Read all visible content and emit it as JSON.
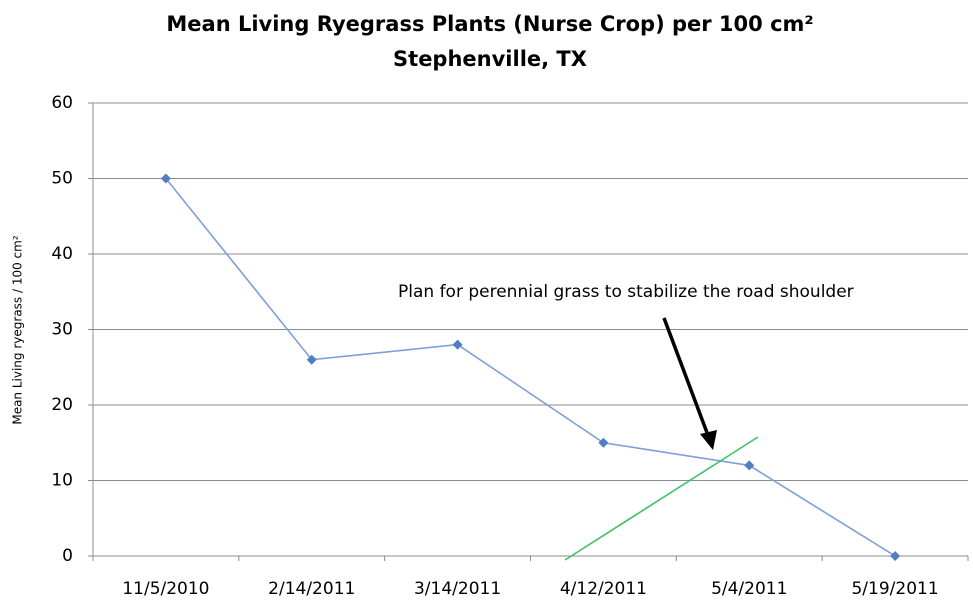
{
  "chart_data": {
    "type": "line",
    "title": "Mean Living Ryegrass Plants (Nurse Crop) per 100 cm²",
    "subtitle": "Stephenville, TX",
    "y_label": "Mean Living ryegrass / 100 cm²",
    "annotation": "Plan for perennial grass to stabilize the road shoulder",
    "categories": [
      "11/5/2010",
      "2/14/2011",
      "3/14/2011",
      "4/12/2011",
      "5/4/2011",
      "5/19/2011"
    ],
    "series": [
      {
        "color": "#7da0d6",
        "values": [
          50,
          26,
          28,
          15,
          12,
          0
        ]
      }
    ],
    "ylim": [
      0,
      60
    ],
    "yticks": [
      0,
      10,
      20,
      30,
      40,
      50,
      60
    ],
    "grid": true
  }
}
